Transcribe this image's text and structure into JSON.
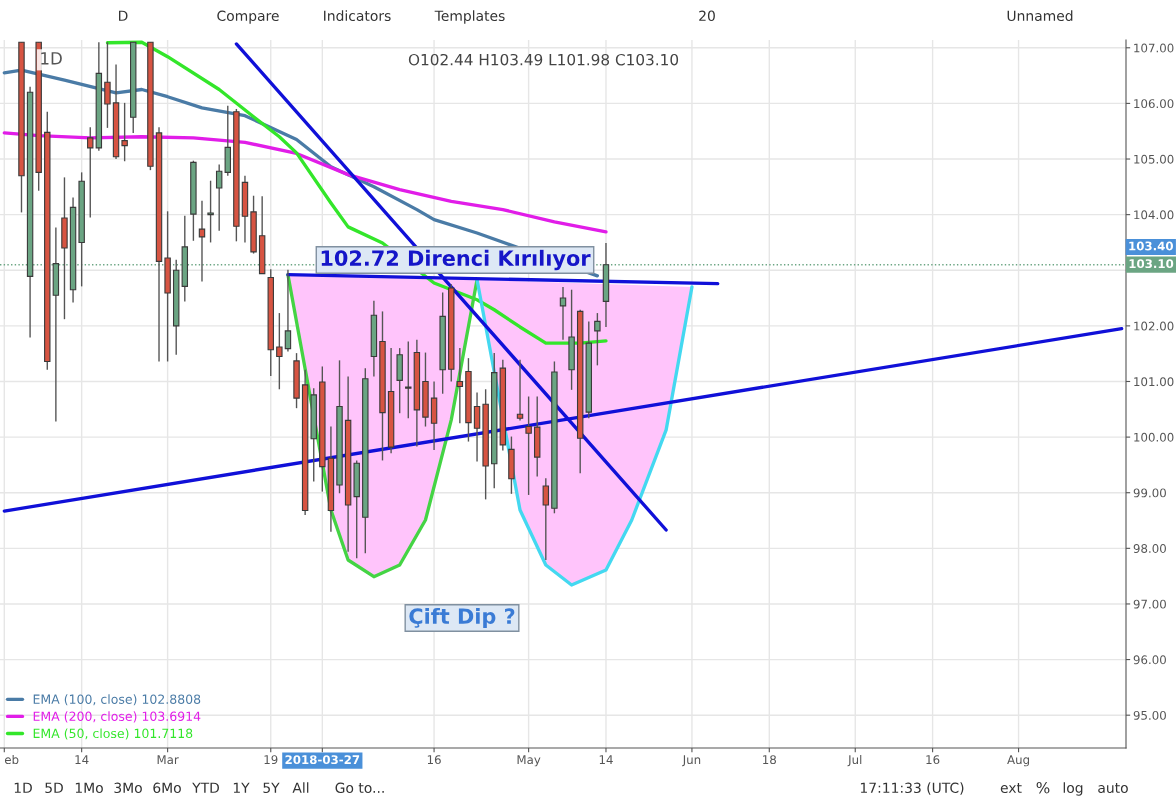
{
  "chart_data": {
    "type": "candlestick",
    "title": "1D",
    "categories": [
      "eb",
      null,
      null,
      null,
      null,
      null,
      null,
      null,
      null,
      "14",
      null,
      null,
      null,
      null,
      null,
      null,
      null,
      null,
      null,
      "Mar",
      null,
      null,
      null,
      null,
      null,
      null,
      null,
      null,
      null,
      null,
      null,
      "19",
      null,
      null,
      null,
      null,
      null,
      "2018-03-27",
      null,
      null,
      null,
      null,
      null,
      null,
      null,
      null,
      null,
      null,
      null,
      null,
      "16",
      null,
      null,
      null,
      null,
      null,
      null,
      null,
      null,
      null,
      null,
      "May",
      null,
      null,
      null,
      null,
      null,
      null,
      null,
      null,
      "14",
      null,
      null,
      null,
      null,
      null,
      null,
      null,
      null,
      null,
      "Jun",
      null,
      null,
      null,
      null,
      null,
      null,
      null,
      null,
      "18",
      null,
      null,
      null,
      null,
      null,
      null,
      null,
      null,
      null,
      "Jul",
      null,
      null,
      null,
      null,
      null,
      null,
      null,
      null,
      "16",
      null,
      null,
      null,
      null,
      null,
      null,
      null,
      null,
      null,
      "Aug",
      null,
      null,
      null,
      null,
      null,
      null,
      null,
      null,
      null,
      null,
      null,
      null
    ],
    "ohlc": [
      null,
      null,
      [
        107.1,
        107.1,
        104.04,
        104.7
      ],
      [
        102.89,
        106.3,
        101.79,
        106.2
      ],
      [
        107.1,
        107.1,
        104.43,
        104.76
      ],
      [
        105.48,
        105.85,
        101.21,
        101.36
      ],
      [
        102.55,
        103.77,
        100.28,
        103.12
      ],
      [
        103.94,
        104.67,
        102.12,
        103.4
      ],
      [
        102.65,
        104.31,
        102.42,
        104.13
      ],
      [
        103.5,
        104.76,
        102.71,
        104.6
      ],
      [
        105.38,
        105.57,
        103.95,
        105.2
      ],
      [
        105.2,
        107.1,
        105.15,
        106.54
      ],
      [
        106.38,
        107.1,
        105.56,
        105.99
      ],
      [
        106.01,
        106.7,
        105.0,
        105.04
      ],
      [
        105.33,
        106.01,
        104.96,
        105.24
      ],
      [
        105.75,
        107.1,
        105.47,
        107.1
      ],
      null,
      [
        107.1,
        107.1,
        104.8,
        104.87
      ],
      [
        105.47,
        105.57,
        101.36,
        103.16
      ],
      [
        103.22,
        104.06,
        101.36,
        102.59
      ],
      [
        102.0,
        103.19,
        101.48,
        103.0
      ],
      [
        102.71,
        103.98,
        102.44,
        103.42
      ],
      [
        104.01,
        104.97,
        103.53,
        104.94
      ],
      [
        103.74,
        104.25,
        102.8,
        103.6
      ],
      [
        104.0,
        104.61,
        103.5,
        104.03
      ],
      [
        104.48,
        104.9,
        103.71,
        104.78
      ],
      [
        104.76,
        105.96,
        104.7,
        105.21
      ],
      [
        105.85,
        105.9,
        103.52,
        103.79
      ],
      [
        104.58,
        104.7,
        103.5,
        103.97
      ],
      [
        104.05,
        104.34,
        103.3,
        103.33
      ],
      [
        103.62,
        104.33,
        102.94,
        102.94
      ],
      [
        102.87,
        103.02,
        101.1,
        101.57
      ],
      [
        101.62,
        102.23,
        100.86,
        101.45
      ],
      [
        101.59,
        103.01,
        101.54,
        101.91
      ],
      [
        101.37,
        101.51,
        100.52,
        100.7
      ],
      [
        100.94,
        101.21,
        98.6,
        98.68
      ],
      [
        99.97,
        100.88,
        99.2,
        100.76
      ],
      [
        100.99,
        101.27,
        99.02,
        99.47
      ],
      [
        99.62,
        100.19,
        98.3,
        98.68
      ],
      [
        99.14,
        101.38,
        98.99,
        100.55
      ],
      [
        100.3,
        101.09,
        97.94,
        98.78
      ],
      [
        98.93,
        99.58,
        97.82,
        99.53
      ],
      [
        98.56,
        101.24,
        97.91,
        101.05
      ],
      [
        101.45,
        102.45,
        101.09,
        102.19
      ],
      [
        101.72,
        102.26,
        99.58,
        100.44
      ],
      [
        100.82,
        101.6,
        99.71,
        99.82
      ],
      [
        101.02,
        101.6,
        100.43,
        101.48
      ],
      [
        100.9,
        101.72,
        100.34,
        100.88
      ],
      [
        101.52,
        101.75,
        99.83,
        100.49
      ],
      [
        101.0,
        101.52,
        100.19,
        100.36
      ],
      [
        100.7,
        101.0,
        99.77,
        100.25
      ],
      [
        101.21,
        102.6,
        100.78,
        102.17
      ],
      [
        102.68,
        102.75,
        101.0,
        101.22
      ],
      [
        101.0,
        101.6,
        100.25,
        100.91
      ],
      [
        101.18,
        101.42,
        99.92,
        100.26
      ],
      [
        100.55,
        100.8,
        99.56,
        100.16
      ],
      [
        100.59,
        100.86,
        98.88,
        99.48
      ],
      [
        99.52,
        101.51,
        99.08,
        101.16
      ],
      [
        101.24,
        101.39,
        99.76,
        99.86
      ],
      [
        99.78,
        100.01,
        98.98,
        99.25
      ],
      [
        100.41,
        101.39,
        100.3,
        100.34
      ],
      [
        100.19,
        100.73,
        98.96,
        100.07
      ],
      [
        100.18,
        100.73,
        99.29,
        99.64
      ],
      [
        99.12,
        99.26,
        97.79,
        98.78
      ],
      [
        98.72,
        101.36,
        98.63,
        101.17
      ],
      [
        102.36,
        102.7,
        101.75,
        102.5
      ],
      [
        101.21,
        102.65,
        100.85,
        101.8
      ],
      [
        102.26,
        102.29,
        99.35,
        99.98
      ],
      [
        100.45,
        102.08,
        100.34,
        101.69
      ],
      [
        101.91,
        102.23,
        101.29,
        102.08
      ],
      [
        102.44,
        103.49,
        101.98,
        103.1
      ],
      null,
      null,
      null,
      null,
      null,
      null,
      null,
      null,
      null,
      null,
      null,
      null,
      null,
      null,
      null,
      null,
      null,
      null,
      null,
      null,
      null,
      null,
      null,
      null,
      null,
      null,
      null,
      null,
      null,
      null,
      null,
      null,
      null,
      null,
      null,
      null,
      null,
      null,
      null,
      null,
      null,
      null,
      null,
      null,
      null,
      null,
      null,
      null,
      null,
      null,
      null,
      null,
      null,
      null,
      null,
      null,
      null,
      null,
      null,
      null
    ],
    "series": [
      {
        "type": "line",
        "name": "EMA (100, close) 102.8808",
        "color": "#4a7ba6",
        "values": [
          106.55,
          null,
          106.6,
          null,
          null,
          null,
          null,
          106.42,
          null,
          null,
          null,
          null,
          null,
          106.19,
          null,
          null,
          106.25,
          null,
          null,
          106.12,
          null,
          null,
          null,
          105.92,
          null,
          null,
          null,
          null,
          105.78,
          null,
          null,
          null,
          null,
          null,
          105.35,
          null,
          null,
          null,
          104.86,
          null,
          null,
          null,
          null,
          104.5,
          null,
          null,
          null,
          null,
          104.09,
          null,
          103.91,
          null,
          null,
          null,
          null,
          103.67,
          null,
          null,
          null,
          null,
          null,
          null,
          null,
          null,
          null,
          null,
          null,
          null,
          null,
          102.9,
          null,
          null,
          null,
          null,
          null,
          null,
          null,
          null,
          null,
          null,
          null,
          null,
          null,
          null,
          null,
          null,
          null,
          null,
          null,
          null,
          null,
          null,
          null,
          null,
          null,
          null,
          null,
          null,
          null,
          null,
          null,
          null,
          null,
          null,
          null,
          null,
          null,
          null,
          null,
          null,
          null,
          null,
          null,
          null,
          null,
          null,
          null,
          null,
          null,
          null,
          null,
          null,
          null,
          null,
          null,
          null,
          null,
          null,
          null,
          null,
          null
        ]
      },
      {
        "type": "line",
        "name": "EMA (200, close) 103.6914",
        "color": "#e11de8",
        "values": [
          105.47,
          null,
          null,
          null,
          105.42,
          null,
          null,
          null,
          null,
          null,
          105.38,
          null,
          null,
          null,
          null,
          null,
          105.4,
          null,
          null,
          null,
          null,
          null,
          105.38,
          null,
          null,
          null,
          null,
          null,
          105.3,
          null,
          null,
          null,
          null,
          null,
          105.1,
          null,
          null,
          null,
          null,
          null,
          104.72,
          null,
          null,
          null,
          null,
          null,
          104.45,
          null,
          null,
          null,
          null,
          null,
          104.24,
          null,
          null,
          null,
          null,
          null,
          104.09,
          null,
          null,
          null,
          null,
          null,
          103.87,
          null,
          null,
          null,
          null,
          null,
          103.69,
          null,
          null,
          null,
          null,
          null,
          null,
          null,
          null,
          null,
          null,
          null,
          null,
          null,
          null,
          null,
          null,
          null,
          null,
          null,
          null,
          null,
          null,
          null,
          null,
          null,
          null,
          null,
          null,
          null,
          null,
          null,
          null,
          null,
          null,
          null,
          null,
          null,
          null,
          null,
          null,
          null,
          null,
          null,
          null,
          null,
          null,
          null,
          null,
          null,
          null,
          null,
          null,
          null,
          null,
          null,
          null,
          null,
          null,
          null,
          null
        ]
      },
      {
        "type": "line",
        "name": "EMA (50, close) 101.7118",
        "color": "#33e62a",
        "values": [
          null,
          null,
          null,
          null,
          null,
          null,
          null,
          null,
          null,
          null,
          null,
          null,
          107.09,
          null,
          null,
          null,
          107.1,
          null,
          null,
          106.84,
          null,
          null,
          null,
          null,
          null,
          106.25,
          null,
          null,
          null,
          105.76,
          null,
          null,
          105.4,
          null,
          105.11,
          null,
          null,
          null,
          104.21,
          null,
          103.78,
          null,
          null,
          null,
          103.49,
          null,
          null,
          null,
          null,
          null,
          102.77,
          null,
          null,
          null,
          null,
          102.47,
          null,
          102.29,
          null,
          null,
          101.98,
          null,
          null,
          101.69,
          null,
          null,
          null,
          101.69,
          null,
          null,
          101.73,
          null,
          null,
          null,
          null,
          null,
          null,
          null,
          null,
          null,
          null,
          null,
          null,
          null,
          null,
          null,
          null,
          null,
          null,
          null,
          null,
          null,
          null,
          null,
          null,
          null,
          null,
          null,
          null,
          null,
          null,
          null,
          null,
          null,
          null,
          null,
          null,
          null,
          null,
          null,
          null,
          null,
          null,
          null,
          null,
          null,
          null,
          null,
          null,
          null,
          null,
          null,
          null,
          null,
          null,
          null,
          null,
          null,
          null,
          null,
          null
        ]
      },
      {
        "type": "line",
        "color": "#44d444",
        "values": [
          null,
          null,
          null,
          null,
          null,
          null,
          null,
          null,
          null,
          null,
          null,
          null,
          null,
          null,
          null,
          null,
          null,
          null,
          null,
          null,
          null,
          null,
          null,
          null,
          null,
          null,
          null,
          null,
          null,
          null,
          null,
          null,
          null,
          102.92,
          null,
          null,
          null,
          null,
          98.69,
          null,
          97.79,
          null,
          null,
          97.49,
          null,
          null,
          97.7,
          null,
          null,
          98.51,
          null,
          null,
          100.31,
          null,
          null,
          102.83,
          null,
          null,
          null,
          null,
          null,
          null,
          null,
          null,
          null,
          null,
          null,
          null,
          null,
          null,
          null,
          null,
          null,
          null,
          null,
          null,
          null,
          null,
          null,
          null,
          null,
          null,
          null,
          null,
          null,
          null,
          null,
          null,
          null,
          null,
          null,
          null,
          null,
          null,
          null,
          null,
          null,
          null,
          null,
          null,
          null,
          null,
          null,
          null,
          null,
          null,
          null,
          null,
          null,
          null,
          null,
          null,
          null,
          null,
          null,
          null,
          null,
          null,
          null,
          null,
          null,
          null,
          null,
          null,
          null,
          null,
          null,
          null,
          null,
          null,
          null
        ]
      },
      {
        "type": "line",
        "color": "#44d8f0",
        "values": [
          null,
          null,
          null,
          null,
          null,
          null,
          null,
          null,
          null,
          null,
          null,
          null,
          null,
          null,
          null,
          null,
          null,
          null,
          null,
          null,
          null,
          null,
          null,
          null,
          null,
          null,
          null,
          null,
          null,
          null,
          null,
          null,
          null,
          null,
          null,
          null,
          null,
          null,
          null,
          null,
          null,
          null,
          null,
          null,
          null,
          null,
          null,
          null,
          null,
          null,
          null,
          null,
          null,
          null,
          null,
          102.83,
          null,
          null,
          null,
          null,
          98.69,
          null,
          null,
          97.7,
          null,
          null,
          97.34,
          null,
          null,
          null,
          97.61,
          null,
          null,
          98.51,
          null,
          null,
          null,
          100.13,
          null,
          null,
          102.7,
          null,
          null,
          null,
          null,
          null,
          null,
          null,
          null,
          null,
          null,
          null,
          null,
          null,
          null,
          null,
          null,
          null,
          null,
          null,
          null,
          null,
          null,
          null,
          null,
          null,
          null,
          null,
          null,
          null,
          null,
          null,
          null,
          null,
          null,
          null,
          null,
          null,
          null,
          null,
          null,
          null,
          null,
          null,
          null,
          null,
          null,
          null,
          null,
          null,
          null
        ]
      },
      {
        "type": "line",
        "color": "#1010d8",
        "values": [
          98.67,
          null,
          null,
          null,
          null,
          null,
          null,
          null,
          null,
          null,
          null,
          null,
          null,
          null,
          null,
          null,
          null,
          null,
          null,
          null,
          null,
          null,
          null,
          null,
          null,
          null,
          null,
          null,
          null,
          null,
          null,
          null,
          null,
          null,
          null,
          null,
          null,
          null,
          null,
          null,
          null,
          null,
          null,
          null,
          null,
          null,
          null,
          null,
          null,
          null,
          null,
          null,
          null,
          null,
          null,
          null,
          null,
          null,
          null,
          null,
          null,
          null,
          null,
          null,
          null,
          null,
          null,
          null,
          null,
          null,
          null,
          null,
          null,
          null,
          null,
          null,
          null,
          null,
          null,
          null,
          null,
          null,
          null,
          null,
          null,
          null,
          null,
          null,
          null,
          null,
          null,
          null,
          null,
          null,
          null,
          null,
          null,
          null,
          null,
          null,
          null,
          null,
          null,
          null,
          null,
          null,
          null,
          null,
          null,
          null,
          null,
          null,
          null,
          null,
          null,
          null,
          null,
          null,
          null,
          null,
          null,
          null,
          null,
          null,
          null,
          null,
          null,
          null,
          null,
          null,
          101.95
        ]
      },
      {
        "type": "line",
        "color": "#1010d8",
        "values": [
          null,
          null,
          null,
          null,
          null,
          null,
          null,
          null,
          null,
          null,
          null,
          null,
          null,
          null,
          null,
          null,
          null,
          null,
          null,
          null,
          null,
          null,
          null,
          null,
          null,
          null,
          null,
          107.07,
          null,
          null,
          null,
          null,
          null,
          null,
          null,
          null,
          null,
          null,
          null,
          null,
          null,
          null,
          null,
          null,
          null,
          null,
          null,
          null,
          null,
          null,
          null,
          null,
          null,
          null,
          null,
          null,
          null,
          null,
          null,
          null,
          null,
          null,
          null,
          null,
          null,
          null,
          null,
          null,
          null,
          null,
          null,
          null,
          null,
          null,
          null,
          null,
          null,
          98.33,
          null,
          null,
          null,
          null,
          null,
          null,
          null,
          null,
          null,
          null,
          null,
          null,
          null,
          null,
          null,
          null,
          null,
          null,
          null,
          null,
          null,
          null,
          null,
          null,
          null,
          null,
          null,
          null,
          null,
          null,
          null,
          null,
          null,
          null,
          null,
          null,
          null,
          null,
          null,
          null,
          null,
          null,
          null,
          null,
          null,
          null,
          null,
          null,
          null,
          null,
          null,
          null,
          null
        ]
      },
      {
        "type": "line",
        "color": "#1010d8",
        "values": [
          null,
          null,
          null,
          null,
          null,
          null,
          null,
          null,
          null,
          null,
          null,
          null,
          null,
          null,
          null,
          null,
          null,
          null,
          null,
          null,
          null,
          null,
          null,
          null,
          null,
          null,
          null,
          null,
          null,
          null,
          null,
          null,
          null,
          102.92,
          null,
          null,
          null,
          null,
          null,
          null,
          null,
          null,
          null,
          null,
          null,
          null,
          null,
          null,
          null,
          null,
          null,
          null,
          null,
          null,
          null,
          null,
          null,
          null,
          null,
          null,
          null,
          null,
          null,
          null,
          null,
          null,
          null,
          null,
          null,
          null,
          null,
          null,
          null,
          null,
          null,
          null,
          null,
          null,
          null,
          null,
          null,
          null,
          null,
          102.76,
          null,
          null,
          null,
          null,
          null,
          null,
          null,
          null,
          null,
          null,
          null,
          null,
          null,
          null,
          null,
          null,
          null,
          null,
          null,
          null,
          null,
          null,
          null,
          null,
          null,
          null,
          null,
          null,
          null,
          null,
          null,
          null,
          null,
          null,
          null,
          null,
          null,
          null,
          null,
          null,
          null,
          null,
          null,
          null,
          null,
          null,
          null
        ]
      }
    ],
    "ref_lines": [
      {
        "axis": "y",
        "value": 103.1,
        "label": "103.10",
        "color": "#6ba583",
        "line_style": "dotted"
      }
    ],
    "annotations": [
      "O102.44 H103.49 L101.98 C103.10",
      "102.72 Direnci Kırılıyor",
      "Çift Dip ?",
      "103.40",
      "D",
      "Compare",
      "Indicators",
      "Templates",
      "20",
      "Unnamed",
      "1D",
      "5D",
      "1Mo",
      "3Mo",
      "6Mo",
      "YTD",
      "1Y",
      "5Y",
      "All",
      "Go to...",
      "17:11:33 (UTC)",
      "ext",
      "%",
      "log",
      "auto"
    ],
    "ylim": [
      94.41,
      107.14
    ],
    "yticks": [
      {
        "value": 95,
        "label": "95.00"
      },
      {
        "value": 96,
        "label": "96.00"
      },
      {
        "value": 97,
        "label": "97.00"
      },
      {
        "value": 98,
        "label": "98.00"
      },
      {
        "value": 99,
        "label": "99.00"
      },
      {
        "value": 100,
        "label": "100.00"
      },
      {
        "value": 101,
        "label": "101.00"
      },
      {
        "value": 102,
        "label": "102.00"
      },
      {
        "value": 103,
        "label": null
      },
      {
        "value": 104,
        "label": "104.00"
      },
      {
        "value": 105,
        "label": "105.00"
      },
      {
        "value": 106,
        "label": "106.00"
      },
      {
        "value": 107,
        "label": "107.00"
      }
    ],
    "grid": true,
    "legend": "bottom left"
  }
}
